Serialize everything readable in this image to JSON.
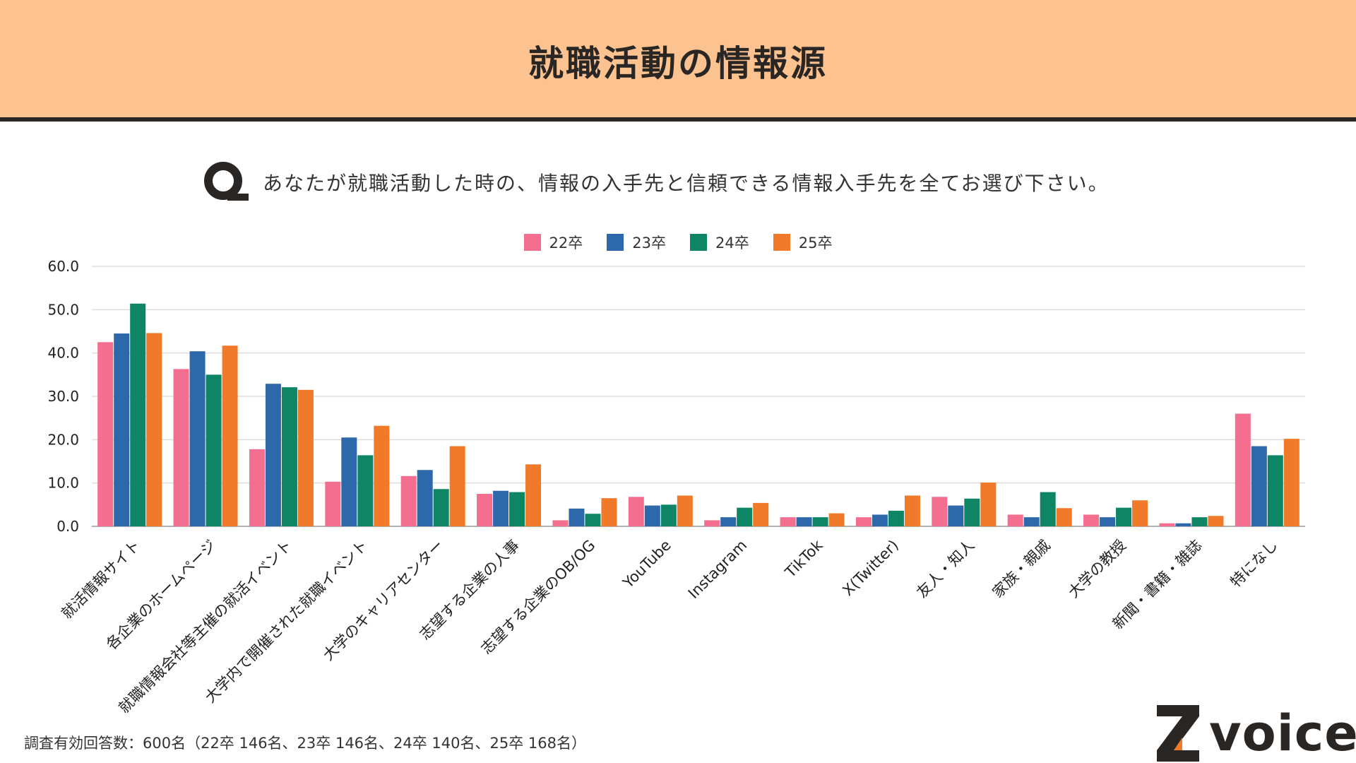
{
  "header": {
    "title": "就職活動の情報源"
  },
  "question": {
    "text": "あなたが就職活動した時の、情報の入手先と信頼できる情報入手先を全てお選び下さい。"
  },
  "colors": {
    "s22": "#f36e8f",
    "s23": "#2d68ab",
    "s24": "#0e8666",
    "s25": "#f07a2a"
  },
  "chart_data": {
    "type": "bar",
    "title": "",
    "xlabel": "",
    "ylabel": "",
    "ylim": [
      0,
      60
    ],
    "yticks": [
      "0.0",
      "10.0",
      "20.0",
      "30.0",
      "40.0",
      "50.0",
      "60.0"
    ],
    "legend_position": "top-center",
    "categories": [
      "就活情報サイト",
      "各企業のホームページ",
      "就職情報会社等主催の就活イベント",
      "大学内で開催された就職イベント",
      "大学のキャリアセンター",
      "志望する企業の人事",
      "志望する企業のOB/OG",
      "YouTube",
      "Instagram",
      "TikTok",
      "X(Twitter)",
      "友人・知人",
      "家族・親戚",
      "大学の教授",
      "新聞・書籍・雑誌",
      "特になし"
    ],
    "series": [
      {
        "name": "22卒",
        "values": [
          42.5,
          36.3,
          17.8,
          10.3,
          11.6,
          7.5,
          1.4,
          6.8,
          1.4,
          2.1,
          2.1,
          6.8,
          2.7,
          2.7,
          0.7,
          26.0
        ]
      },
      {
        "name": "23卒",
        "values": [
          44.5,
          40.4,
          32.9,
          20.5,
          13.0,
          8.2,
          4.1,
          4.8,
          2.1,
          2.1,
          2.7,
          4.8,
          2.1,
          2.1,
          0.7,
          18.5
        ]
      },
      {
        "name": "24卒",
        "values": [
          51.4,
          35.0,
          32.1,
          16.4,
          8.6,
          7.9,
          2.9,
          5.0,
          4.3,
          2.1,
          3.6,
          6.4,
          7.9,
          4.3,
          2.1,
          16.4
        ]
      },
      {
        "name": "25卒",
        "values": [
          44.6,
          41.7,
          31.5,
          23.2,
          18.5,
          14.3,
          6.5,
          7.1,
          5.4,
          3.0,
          7.1,
          10.1,
          4.2,
          6.0,
          2.4,
          20.2
        ]
      }
    ]
  },
  "footnote": "調査有効回答数：600名（22卒 146名、23卒 146名、24卒 140名、25卒 168名）",
  "logo": {
    "text": "voice"
  }
}
